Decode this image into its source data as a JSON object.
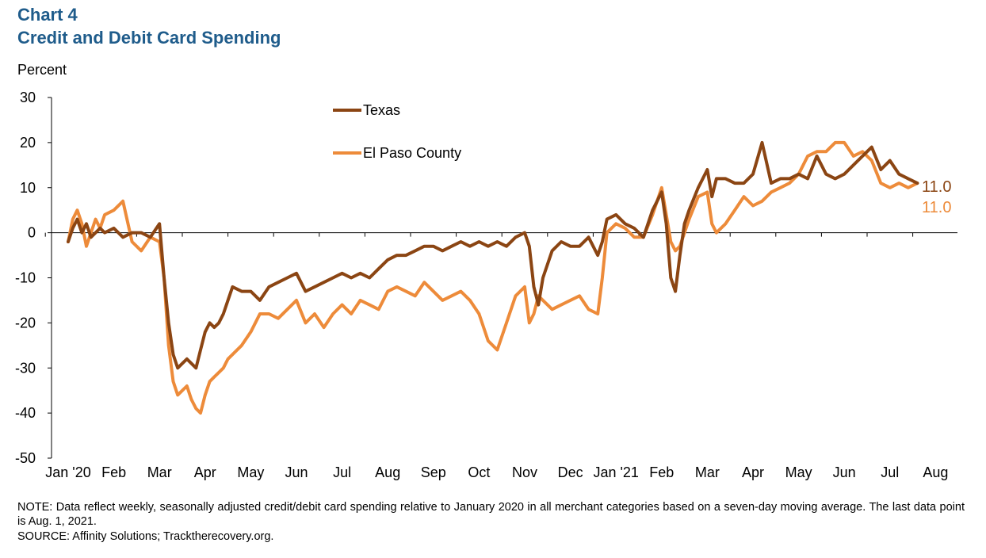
{
  "header": {
    "chart_number": "Chart 4",
    "title": "Credit and Debit Card Spending",
    "ylabel": "Percent"
  },
  "footer": {
    "note": "NOTE: Data reflect weekly, seasonally adjusted credit/debit card spending relative to January 2020 in all merchant categories based on a seven-day moving average. The last data point is Aug. 1, 2021.",
    "source": "SOURCE: Affinity Solutions; Tracktherecovery.org."
  },
  "colors": {
    "title": "#1f5c8b",
    "texas": "#8b4513",
    "el_paso": "#ed8b3a"
  },
  "chart_data": {
    "type": "line",
    "title": "Credit and Debit Card Spending",
    "ylabel": "Percent",
    "ylim": [
      -50,
      30
    ],
    "yticks": [
      30,
      20,
      10,
      0,
      -10,
      -20,
      -30,
      -40,
      -50
    ],
    "xlabels": [
      "Jan '20",
      "Feb",
      "Mar",
      "Apr",
      "May",
      "Jun",
      "Jul",
      "Aug",
      "Sep",
      "Oct",
      "Nov",
      "Dec",
      "Jan '21",
      "Feb",
      "Mar",
      "Apr",
      "May",
      "Jun",
      "Jul",
      "Aug"
    ],
    "xunit": "months since Jan 2020",
    "legend_position": "top-center",
    "series": [
      {
        "name": "Texas",
        "color": "#8b4513",
        "end_label": "11.0",
        "x": [
          0.0,
          0.1,
          0.2,
          0.3,
          0.4,
          0.5,
          0.6,
          0.7,
          0.8,
          1.0,
          1.2,
          1.4,
          1.6,
          1.8,
          2.0,
          2.1,
          2.2,
          2.3,
          2.4,
          2.5,
          2.6,
          2.7,
          2.8,
          2.9,
          3.0,
          3.1,
          3.2,
          3.3,
          3.4,
          3.5,
          3.6,
          3.8,
          4.0,
          4.2,
          4.4,
          4.6,
          4.8,
          5.0,
          5.2,
          5.4,
          5.6,
          5.8,
          6.0,
          6.2,
          6.4,
          6.6,
          6.8,
          7.0,
          7.2,
          7.4,
          7.6,
          7.8,
          8.0,
          8.2,
          8.4,
          8.6,
          8.8,
          9.0,
          9.2,
          9.4,
          9.6,
          9.8,
          10.0,
          10.1,
          10.2,
          10.3,
          10.4,
          10.6,
          10.8,
          11.0,
          11.2,
          11.4,
          11.6,
          11.7,
          11.8,
          12.0,
          12.2,
          12.4,
          12.6,
          12.8,
          13.0,
          13.1,
          13.2,
          13.3,
          13.4,
          13.5,
          13.6,
          13.8,
          14.0,
          14.1,
          14.2,
          14.4,
          14.6,
          14.8,
          15.0,
          15.2,
          15.4,
          15.6,
          15.8,
          16.0,
          16.2,
          16.4,
          16.6,
          16.8,
          17.0,
          17.2,
          17.4,
          17.6,
          17.8,
          18.0,
          18.2,
          18.4,
          18.6
        ],
        "y": [
          -2,
          1,
          3,
          0,
          2,
          -1,
          0,
          1,
          0,
          1,
          -1,
          0,
          0,
          -1,
          2,
          -10,
          -20,
          -27,
          -30,
          -29,
          -28,
          -29,
          -30,
          -26,
          -22,
          -20,
          -21,
          -20,
          -18,
          -15,
          -12,
          -13,
          -13,
          -15,
          -12,
          -11,
          -10,
          -9,
          -13,
          -12,
          -11,
          -10,
          -9,
          -10,
          -9,
          -10,
          -8,
          -6,
          -5,
          -5,
          -4,
          -3,
          -3,
          -4,
          -3,
          -2,
          -3,
          -2,
          -3,
          -2,
          -3,
          -1,
          0,
          -3,
          -12,
          -16,
          -10,
          -4,
          -2,
          -3,
          -3,
          -1,
          -5,
          -2,
          3,
          4,
          2,
          1,
          -1,
          5,
          9,
          2,
          -10,
          -13,
          -5,
          2,
          5,
          10,
          14,
          8,
          12,
          12,
          11,
          11,
          13,
          20,
          11,
          12,
          12,
          13,
          12,
          17,
          13,
          12,
          13,
          15,
          17,
          19,
          14,
          16,
          13,
          12,
          11
        ]
      },
      {
        "name": "El Paso County",
        "color": "#ed8b3a",
        "end_label": "11.0",
        "x": [
          0.0,
          0.1,
          0.2,
          0.3,
          0.4,
          0.5,
          0.6,
          0.7,
          0.8,
          1.0,
          1.2,
          1.4,
          1.6,
          1.8,
          2.0,
          2.1,
          2.2,
          2.3,
          2.4,
          2.5,
          2.6,
          2.7,
          2.8,
          2.9,
          3.0,
          3.1,
          3.2,
          3.3,
          3.4,
          3.5,
          3.6,
          3.8,
          4.0,
          4.2,
          4.4,
          4.6,
          4.8,
          5.0,
          5.2,
          5.4,
          5.6,
          5.8,
          6.0,
          6.2,
          6.4,
          6.6,
          6.8,
          7.0,
          7.2,
          7.4,
          7.6,
          7.8,
          8.0,
          8.2,
          8.4,
          8.6,
          8.8,
          9.0,
          9.2,
          9.4,
          9.6,
          9.8,
          10.0,
          10.1,
          10.2,
          10.3,
          10.4,
          10.6,
          10.8,
          11.0,
          11.2,
          11.4,
          11.6,
          11.7,
          11.8,
          12.0,
          12.2,
          12.4,
          12.6,
          12.8,
          13.0,
          13.1,
          13.2,
          13.3,
          13.4,
          13.5,
          13.6,
          13.8,
          14.0,
          14.1,
          14.2,
          14.4,
          14.6,
          14.8,
          15.0,
          15.2,
          15.4,
          15.6,
          15.8,
          16.0,
          16.2,
          16.4,
          16.6,
          16.8,
          17.0,
          17.2,
          17.4,
          17.6,
          17.8,
          18.0,
          18.2,
          18.4,
          18.6
        ],
        "y": [
          -2,
          3,
          5,
          2,
          -3,
          0,
          3,
          1,
          4,
          5,
          7,
          -2,
          -4,
          -1,
          -2,
          -10,
          -25,
          -33,
          -36,
          -35,
          -34,
          -37,
          -39,
          -40,
          -36,
          -33,
          -32,
          -31,
          -30,
          -28,
          -27,
          -25,
          -22,
          -18,
          -18,
          -19,
          -17,
          -15,
          -20,
          -18,
          -21,
          -18,
          -16,
          -18,
          -15,
          -16,
          -17,
          -13,
          -12,
          -13,
          -14,
          -11,
          -13,
          -15,
          -14,
          -13,
          -15,
          -18,
          -24,
          -26,
          -20,
          -14,
          -12,
          -20,
          -18,
          -14,
          -15,
          -17,
          -16,
          -15,
          -14,
          -17,
          -18,
          -10,
          0,
          2,
          1,
          -1,
          -1,
          4,
          10,
          4,
          -2,
          -4,
          -3,
          0,
          3,
          8,
          9,
          2,
          0,
          2,
          5,
          8,
          6,
          7,
          9,
          10,
          11,
          13,
          17,
          18,
          18,
          20,
          20,
          17,
          18,
          16,
          11,
          10,
          11,
          10,
          11
        ]
      }
    ]
  }
}
